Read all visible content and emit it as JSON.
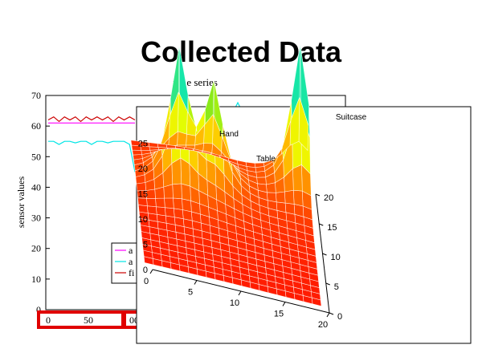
{
  "slide": {
    "title": "Collected Data"
  },
  "chart_data": [
    {
      "type": "line",
      "title": "time series",
      "xlabel": "",
      "ylabel": "sensor values",
      "ylim": [
        0,
        70
      ],
      "yticks": [
        0,
        10,
        20,
        30,
        40,
        50,
        60,
        70
      ],
      "xtick_labels": [
        "0",
        "50",
        "00"
      ],
      "legend_placement": "bottom-right",
      "legend_fragments": [
        "a",
        "a",
        "fi"
      ],
      "series": [
        {
          "color": "#ff00ff",
          "values": [
            61,
            61,
            61,
            61,
            61,
            61,
            61,
            61,
            61,
            61,
            61,
            61,
            61,
            61,
            61,
            61,
            61
          ]
        },
        {
          "color": "#00e5e5",
          "values": [
            55,
            55,
            54,
            55,
            55,
            54.5,
            55,
            55,
            54,
            55,
            55,
            54.5,
            55,
            55,
            55,
            54,
            45
          ]
        },
        {
          "color": "#cc0000",
          "values": [
            62,
            63,
            61.5,
            63,
            62,
            63,
            61.5,
            63,
            62,
            63,
            62,
            63,
            61.5,
            63,
            62,
            63,
            62
          ]
        }
      ],
      "highlight_color": "#e00000"
    },
    {
      "type": "surface",
      "annotations": [
        "Hand",
        "Table",
        "Suitcase"
      ],
      "x_ticks": [
        "0",
        "5",
        "10",
        "15",
        "20"
      ],
      "y_ticks": [
        "0",
        "5",
        "10",
        "15",
        "20"
      ],
      "z_ticks": [
        "0",
        "5",
        "10",
        "15",
        "20",
        "25"
      ],
      "peaks": [
        {
          "label": "Hand",
          "x": 5,
          "y": 14,
          "z": 27
        },
        {
          "label": "Table",
          "x": 9,
          "y": 15,
          "z": 20
        },
        {
          "label": "Suitcase",
          "x": 19,
          "y": 18,
          "z": 30
        }
      ]
    }
  ]
}
